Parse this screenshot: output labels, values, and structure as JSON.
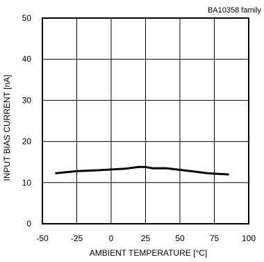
{
  "chart_data": {
    "type": "line",
    "title": "",
    "annotation": "BA10358  family",
    "xlabel": "AMBIENT TEMPERATURE [°C]",
    "ylabel": "INPUT BIAS CURRENT [nA]",
    "xlim": [
      -50,
      100
    ],
    "ylim": [
      0,
      50
    ],
    "xticks": [
      -50,
      -25,
      0,
      25,
      50,
      75,
      100
    ],
    "yticks": [
      0,
      10,
      20,
      30,
      40,
      50
    ],
    "grid": true,
    "legend": "none",
    "series": [
      {
        "color": "#000000",
        "x": [
          -40,
          -25,
          -10,
          0,
          10,
          20,
          25,
          30,
          40,
          50,
          60,
          70,
          85
        ],
        "y": [
          12.3,
          12.8,
          13.0,
          13.2,
          13.4,
          13.8,
          13.8,
          13.5,
          13.5,
          13.1,
          12.7,
          12.3,
          12.0
        ]
      }
    ]
  }
}
